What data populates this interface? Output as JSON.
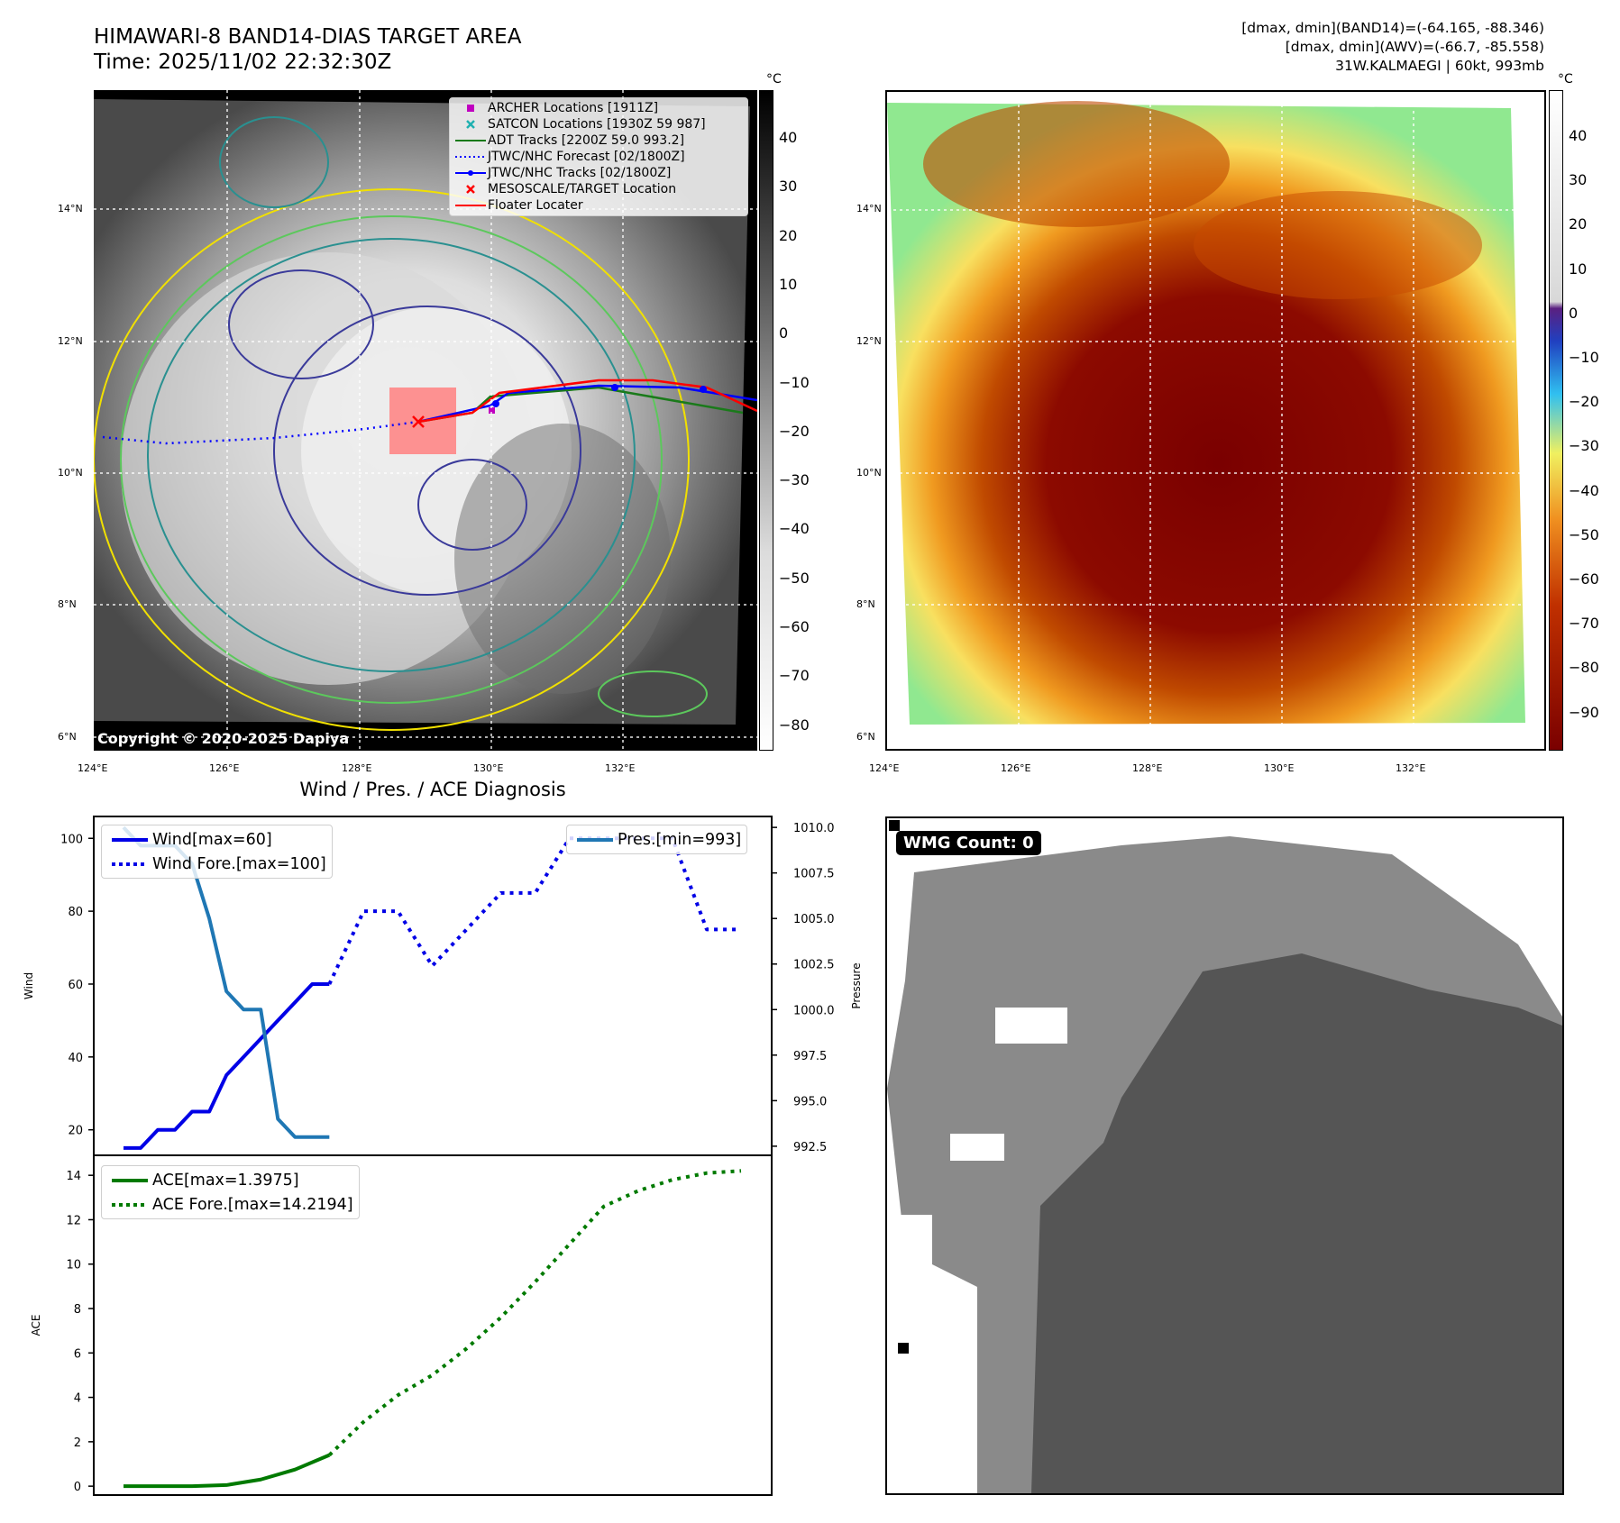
{
  "header": {
    "title_line1": "HIMAWARI-8 BAND14-DIAS TARGET AREA",
    "title_line2": "Time: 2025/11/02 22:32:30Z",
    "info_line1": "[dmax, dmin](BAND14)=(-64.165, -88.346)",
    "info_line2": "[dmax, dmin](AWV)=(-66.7, -85.558)",
    "info_line3": "31W.KALMAEGI | 60kt, 993mb"
  },
  "map_panel_left": {
    "copyright": "Copyright © 2020-2025 Dapiya",
    "legend": [
      {
        "label": "ARCHER Locations [1911Z]",
        "marker": "square",
        "color": "#c000c0"
      },
      {
        "label": "SATCON Locations [1930Z 59 987]",
        "marker": "x",
        "color": "#20b0b0"
      },
      {
        "label": "ADT Tracks [2200Z 59.0 993.2]",
        "marker": "line",
        "color": "#1a7a1a"
      },
      {
        "label": "JTWC/NHC Forecast [02/1800Z]",
        "marker": "dotted",
        "color": "#0000ff"
      },
      {
        "label": "JTWC/NHC Tracks [02/1800Z]",
        "marker": "line-dot",
        "color": "#0000ff"
      },
      {
        "label": "MESOSCALE/TARGET Location",
        "marker": "x",
        "color": "#ff0000"
      },
      {
        "label": "Floater Locater",
        "marker": "line",
        "color": "#ff0000"
      }
    ],
    "colorbar_unit": "°C",
    "colorbar_ticks": [
      "40",
      "30",
      "20",
      "10",
      "0",
      "−10",
      "−20",
      "−30",
      "−40",
      "−50",
      "−60",
      "−70",
      "−80"
    ]
  },
  "map_panel_right": {
    "colorbar_unit": "°C",
    "colorbar_ticks": [
      "40",
      "30",
      "20",
      "10",
      "0",
      "−10",
      "−20",
      "−30",
      "−40",
      "−50",
      "−60",
      "−70",
      "−80",
      "−90"
    ]
  },
  "map_axes": {
    "lat_labels": [
      "14°N",
      "12°N",
      "10°N",
      "8°N",
      "6°N"
    ],
    "lon_labels": [
      "124°E",
      "126°E",
      "128°E",
      "130°E",
      "132°E"
    ]
  },
  "wmg_panel": {
    "label": "WMG Count: 0"
  },
  "chart_data": [
    {
      "type": "line",
      "title": "Wind / Pres. / ACE Diagnosis",
      "ylabel": "Wind",
      "ylabel_right": "Pressure",
      "ylim": [
        13,
        106
      ],
      "ylim_right": [
        992.0,
        1010.6
      ],
      "yticks": [
        20,
        40,
        60,
        80,
        100
      ],
      "yticks_right": [
        992.5,
        995.0,
        997.5,
        1000.0,
        1002.5,
        1005.0,
        1007.5,
        1010.0
      ],
      "legend": [
        "Wind[max=60]",
        "Wind Fore.[max=100]"
      ],
      "legend_right": [
        "Pres.[min=993]"
      ],
      "series": [
        {
          "name": "Wind[max=60]",
          "style": "solid",
          "color": "#0000e6",
          "x": [
            0,
            1,
            2,
            3,
            4,
            5,
            6,
            7,
            8,
            9,
            10,
            11,
            12
          ],
          "values": [
            15,
            15,
            20,
            20,
            25,
            25,
            35,
            40,
            45,
            50,
            55,
            60,
            60
          ]
        },
        {
          "name": "Wind Fore.[max=100]",
          "style": "dotted",
          "color": "#0000e6",
          "x": [
            12,
            14,
            16,
            18,
            20,
            22,
            24,
            26,
            28,
            30,
            32,
            34,
            36
          ],
          "values": [
            60,
            80,
            80,
            65,
            75,
            85,
            85,
            100,
            100,
            100,
            100,
            75,
            75
          ]
        },
        {
          "name": "Pres.[min=993]",
          "style": "solid",
          "color": "#1f77b4",
          "axis": "right",
          "x": [
            0,
            1,
            2,
            3,
            4,
            5,
            6,
            7,
            8,
            9,
            10,
            11,
            12
          ],
          "values": [
            1010,
            1009,
            1009,
            1009,
            1008,
            1005,
            1001,
            1000,
            1000,
            994,
            993,
            993,
            993
          ]
        }
      ]
    },
    {
      "type": "line",
      "ylabel": "ACE",
      "ylim": [
        -0.4,
        14.9
      ],
      "yticks": [
        0,
        2,
        4,
        6,
        8,
        10,
        12,
        14
      ],
      "legend": [
        "ACE[max=1.3975]",
        "ACE Fore.[max=14.2194]"
      ],
      "series": [
        {
          "name": "ACE[max=1.3975]",
          "style": "solid",
          "color": "#007a00",
          "x": [
            0,
            2,
            4,
            6,
            8,
            10,
            12
          ],
          "values": [
            0,
            0,
            0,
            0.05,
            0.3,
            0.75,
            1.4
          ]
        },
        {
          "name": "ACE Fore.[max=14.2194]",
          "style": "dotted",
          "color": "#007a00",
          "x": [
            12,
            14,
            16,
            18,
            20,
            22,
            24,
            26,
            28,
            30,
            32,
            34,
            36
          ],
          "values": [
            1.4,
            2.9,
            4.1,
            5.0,
            6.2,
            7.6,
            9.2,
            10.9,
            12.6,
            13.3,
            13.8,
            14.1,
            14.2
          ]
        }
      ]
    }
  ]
}
